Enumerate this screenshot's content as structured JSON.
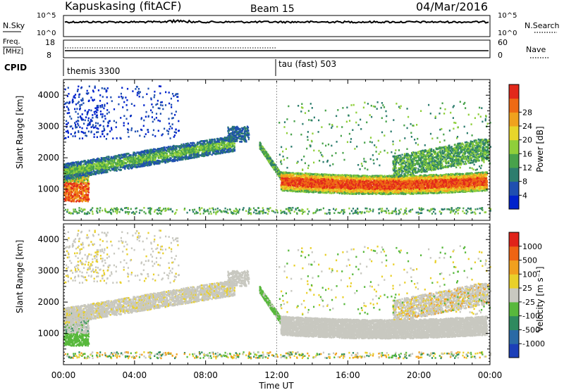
{
  "header": {
    "station": "Kapuskasing (fitACF)",
    "beam": "Beam 15",
    "date": "04/Mar/2016"
  },
  "noise_panel": {
    "left_label": "N.Sky",
    "left_ticks": [
      "10^5",
      "10^0"
    ],
    "right_ticks": [
      "10^5",
      "10^0"
    ],
    "right_label": "N.Search",
    "legend_style": "dotted"
  },
  "freq_panel": {
    "label_line1": "Freq.",
    "label_line2": "[MHz]",
    "left_ticks": [
      "18",
      "8"
    ],
    "right_ticks": [
      "60",
      "0"
    ],
    "right_label": "Nave",
    "legend_style": "dotted"
  },
  "cpid": {
    "label": "CPID",
    "modes": [
      {
        "name": "themis 3300",
        "start_hour": 0
      },
      {
        "name": "tau (fast) 503",
        "start_hour": 12
      }
    ]
  },
  "chart_data": [
    {
      "type": "heatmap",
      "title": "",
      "ylabel": "Slant Range [km]",
      "ylim": [
        0,
        4500
      ],
      "yticks": [
        "1000",
        "2000",
        "3000",
        "4000"
      ],
      "colorbar": {
        "label": "Power [dB]",
        "ticks": [
          "4",
          "8",
          "12",
          "16",
          "20",
          "24",
          "28"
        ],
        "colors": [
          "#0022cc",
          "#1f4fb0",
          "#2d7d6e",
          "#48a24b",
          "#8fcf3a",
          "#e7d52a",
          "#f0a21e",
          "#ee6a14",
          "#e2281b"
        ]
      }
    },
    {
      "type": "heatmap",
      "title": "",
      "ylabel": "Slant Range [km]",
      "ylim": [
        0,
        4500
      ],
      "yticks": [
        "1000",
        "2000",
        "3000",
        "4000"
      ],
      "colorbar": {
        "label": "Velocity [m s⁻¹]",
        "ticks": [
          "1000",
          "500",
          "100",
          "25",
          "-25",
          "-100",
          "-500",
          "-1000"
        ],
        "colors": [
          "#1c3fb8",
          "#2b6aa5",
          "#2f8a5f",
          "#58b83c",
          "#c8c8c0",
          "#e9d02a",
          "#f1a01e",
          "#ee6414",
          "#e0231a"
        ]
      }
    }
  ],
  "xaxis": {
    "label": "Time UT",
    "ticks": [
      "00:00",
      "04:00",
      "08:00",
      "12:00",
      "16:00",
      "20:00",
      "00:00"
    ]
  }
}
